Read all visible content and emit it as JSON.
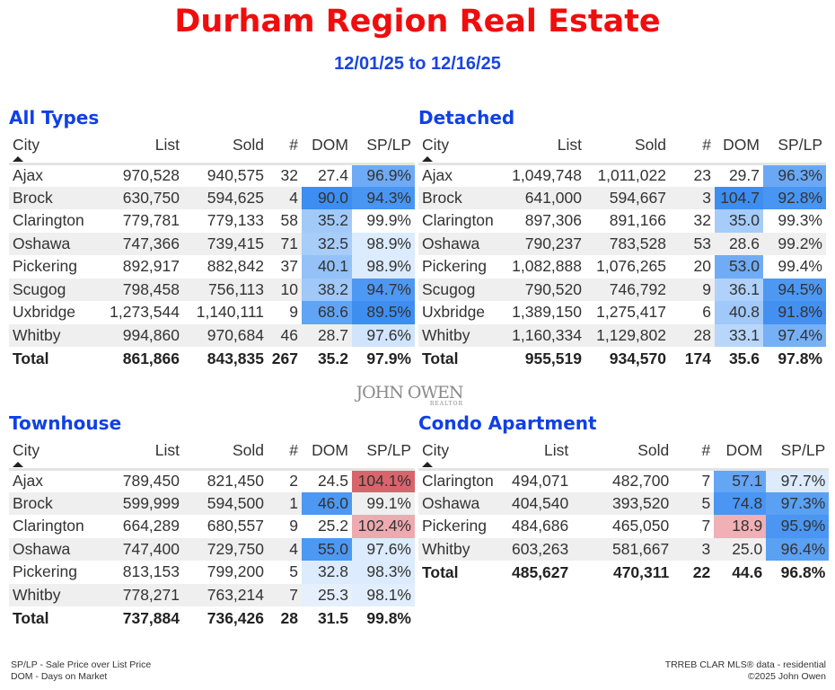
{
  "header": {
    "title": "Durham Region Real Estate",
    "date_range": "12/01/25 to 12/16/25"
  },
  "columns": [
    "City",
    "List",
    "Sold",
    "#",
    "DOM",
    "SP/LP"
  ],
  "colors": {
    "title": "#f00d0d",
    "subtitle": "#1a45e0",
    "section": "#1040e6",
    "heat_blue_strong": "#3d8ef0",
    "heat_red_strong": "#d9646b"
  },
  "tables": [
    {
      "title": "All Types",
      "rows": [
        {
          "c": [
            "Ajax",
            "970,528",
            "940,575",
            "32",
            "27.4",
            "96.9%"
          ],
          "dom_bg": "",
          "sp_bg": "#6eaaf5"
        },
        {
          "c": [
            "Brock",
            "630,750",
            "594,625",
            "4",
            "90.0",
            "94.3%"
          ],
          "dom_bg": "#3d8ef0",
          "sp_bg": "#4896f2"
        },
        {
          "c": [
            "Clarington",
            "779,781",
            "779,133",
            "58",
            "35.2",
            "99.9%"
          ],
          "dom_bg": "#a2caf9",
          "sp_bg": ""
        },
        {
          "c": [
            "Oshawa",
            "747,366",
            "739,415",
            "71",
            "32.5",
            "98.9%"
          ],
          "dom_bg": "#a8cdf9",
          "sp_bg": "#dcebfd"
        },
        {
          "c": [
            "Pickering",
            "892,917",
            "882,842",
            "37",
            "40.1",
            "98.9%"
          ],
          "dom_bg": "#94c1f8",
          "sp_bg": "#dcebfd"
        },
        {
          "c": [
            "Scugog",
            "798,458",
            "756,113",
            "10",
            "38.2",
            "94.7%"
          ],
          "dom_bg": "#a0c8f8",
          "sp_bg": "#4d98f2"
        },
        {
          "c": [
            "Uxbridge",
            "1,273,544",
            "1,140,111",
            "9",
            "68.6",
            "89.5%"
          ],
          "dom_bg": "#62a4f4",
          "sp_bg": "#3d8ef0"
        },
        {
          "c": [
            "Whitby",
            "994,860",
            "970,684",
            "46",
            "28.7",
            "97.6%"
          ],
          "dom_bg": "",
          "sp_bg": "#d0e4fc"
        }
      ],
      "total": [
        "Total",
        "861,866",
        "843,835",
        "267",
        "35.2",
        "97.9%"
      ]
    },
    {
      "title": "Detached",
      "rows": [
        {
          "c": [
            "Ajax",
            "1,049,748",
            "1,011,022",
            "23",
            "29.7",
            "96.3%"
          ],
          "dom_bg": "",
          "sp_bg": "#6aa8f5"
        },
        {
          "c": [
            "Brock",
            "641,000",
            "594,667",
            "3",
            "104.7",
            "92.8%"
          ],
          "dom_bg": "#3d8ef0",
          "sp_bg": "#4896f2"
        },
        {
          "c": [
            "Clarington",
            "897,306",
            "891,166",
            "32",
            "35.0",
            "99.3%"
          ],
          "dom_bg": "#a6ccf9",
          "sp_bg": ""
        },
        {
          "c": [
            "Oshawa",
            "790,237",
            "783,528",
            "53",
            "28.6",
            "99.2%"
          ],
          "dom_bg": "",
          "sp_bg": ""
        },
        {
          "c": [
            "Pickering",
            "1,082,888",
            "1,076,265",
            "20",
            "53.0",
            "99.4%"
          ],
          "dom_bg": "#70acf5",
          "sp_bg": ""
        },
        {
          "c": [
            "Scugog",
            "790,520",
            "746,792",
            "9",
            "36.1",
            "94.5%"
          ],
          "dom_bg": "#b0d2fa",
          "sp_bg": "#4d98f2"
        },
        {
          "c": [
            "Uxbridge",
            "1,389,150",
            "1,275,417",
            "6",
            "40.8",
            "91.8%"
          ],
          "dom_bg": "#a0c8f8",
          "sp_bg": "#4390f1"
        },
        {
          "c": [
            "Whitby",
            "1,160,334",
            "1,129,802",
            "28",
            "33.1",
            "97.4%"
          ],
          "dom_bg": "#b8d6fa",
          "sp_bg": "#76b0f6"
        }
      ],
      "total": [
        "Total",
        "955,519",
        "934,570",
        "174",
        "35.6",
        "97.8%"
      ]
    },
    {
      "title": "Townhouse",
      "rows": [
        {
          "c": [
            "Ajax",
            "789,450",
            "821,450",
            "2",
            "24.5",
            "104.1%"
          ],
          "dom_bg": "",
          "sp_bg": "#d9646b"
        },
        {
          "c": [
            "Brock",
            "599,999",
            "594,500",
            "1",
            "46.0",
            "99.1%"
          ],
          "dom_bg": "#4d98f2",
          "sp_bg": ""
        },
        {
          "c": [
            "Clarington",
            "664,289",
            "680,557",
            "9",
            "25.2",
            "102.4%"
          ],
          "dom_bg": "",
          "sp_bg": "#eeaab0"
        },
        {
          "c": [
            "Oshawa",
            "747,400",
            "729,750",
            "4",
            "55.0",
            "97.6%"
          ],
          "dom_bg": "#4d98f2",
          "sp_bg": "#dcebfd"
        },
        {
          "c": [
            "Pickering",
            "813,153",
            "799,200",
            "5",
            "32.8",
            "98.3%"
          ],
          "dom_bg": "#dcebfd",
          "sp_bg": "#dcebfd"
        },
        {
          "c": [
            "Whitby",
            "778,271",
            "763,214",
            "7",
            "25.3",
            "98.1%"
          ],
          "dom_bg": "#e6f0fd",
          "sp_bg": "#e2eefd"
        }
      ],
      "total": [
        "Total",
        "737,884",
        "736,426",
        "28",
        "31.5",
        "99.8%"
      ]
    },
    {
      "title": "Condo Apartment",
      "rows": [
        {
          "c": [
            "Clarington",
            "494,071",
            "482,700",
            "7",
            "57.1",
            "97.7%"
          ],
          "dom_bg": "#64a5f4",
          "sp_bg": "#dcebfd"
        },
        {
          "c": [
            "Oshawa",
            "404,540",
            "393,520",
            "5",
            "74.8",
            "97.3%"
          ],
          "dom_bg": "#4a96f2",
          "sp_bg": "#5aa0f3"
        },
        {
          "c": [
            "Pickering",
            "484,686",
            "465,050",
            "7",
            "18.9",
            "95.9%"
          ],
          "dom_bg": "#f0b0b6",
          "sp_bg": "#4a96f2"
        },
        {
          "c": [
            "Whitby",
            "603,263",
            "581,667",
            "3",
            "25.0",
            "96.4%"
          ],
          "dom_bg": "",
          "sp_bg": "#5aa0f3"
        }
      ],
      "total": [
        "Total",
        "485,627",
        "470,311",
        "22",
        "44.6",
        "96.8%"
      ]
    }
  ],
  "logo": {
    "name": "JOHN OWEN",
    "sub": "REALTOR"
  },
  "footer": {
    "legend_splp": "SP/LP - Sale Price over List Price",
    "legend_dom": "DOM - Days on Market",
    "source": "TRREB CLAR MLS® data - residential",
    "copyright": "©2025 John Owen"
  }
}
